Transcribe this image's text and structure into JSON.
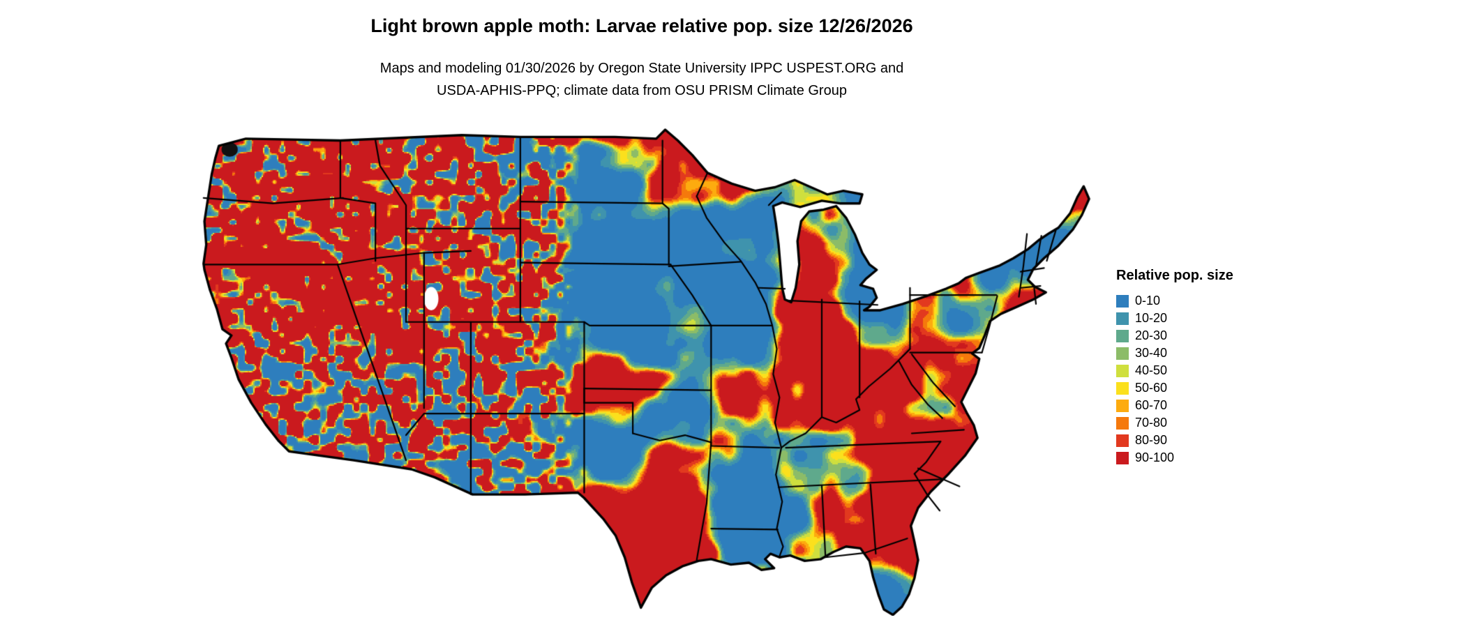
{
  "header": {
    "title": "Light brown apple moth: Larvae relative pop. size 12/26/2026",
    "subtitle_line1": "Maps and modeling 01/30/2026 by Oregon State University IPPC USPEST.ORG and",
    "subtitle_line2": "USDA-APHIS-PPQ; climate data from OSU PRISM Climate Group"
  },
  "map": {
    "type": "choropleth-raster",
    "region": "Continental United States",
    "value_name": "Relative pop. size",
    "dominant_class": "90-100",
    "border_color": "#000000",
    "water_color": "#ffffff"
  },
  "legend": {
    "title": "Relative pop. size",
    "items": [
      {
        "label": "0-10",
        "color": "#2e7ebd"
      },
      {
        "label": "10-20",
        "color": "#3f93ad"
      },
      {
        "label": "20-30",
        "color": "#5fa98c"
      },
      {
        "label": "30-40",
        "color": "#8cbc68"
      },
      {
        "label": "40-50",
        "color": "#cfdf3e"
      },
      {
        "label": "50-60",
        "color": "#fbe01d"
      },
      {
        "label": "60-70",
        "color": "#fdab0f"
      },
      {
        "label": "70-80",
        "color": "#f5790c"
      },
      {
        "label": "80-90",
        "color": "#e2391f"
      },
      {
        "label": "90-100",
        "color": "#ca1a1e"
      }
    ]
  }
}
